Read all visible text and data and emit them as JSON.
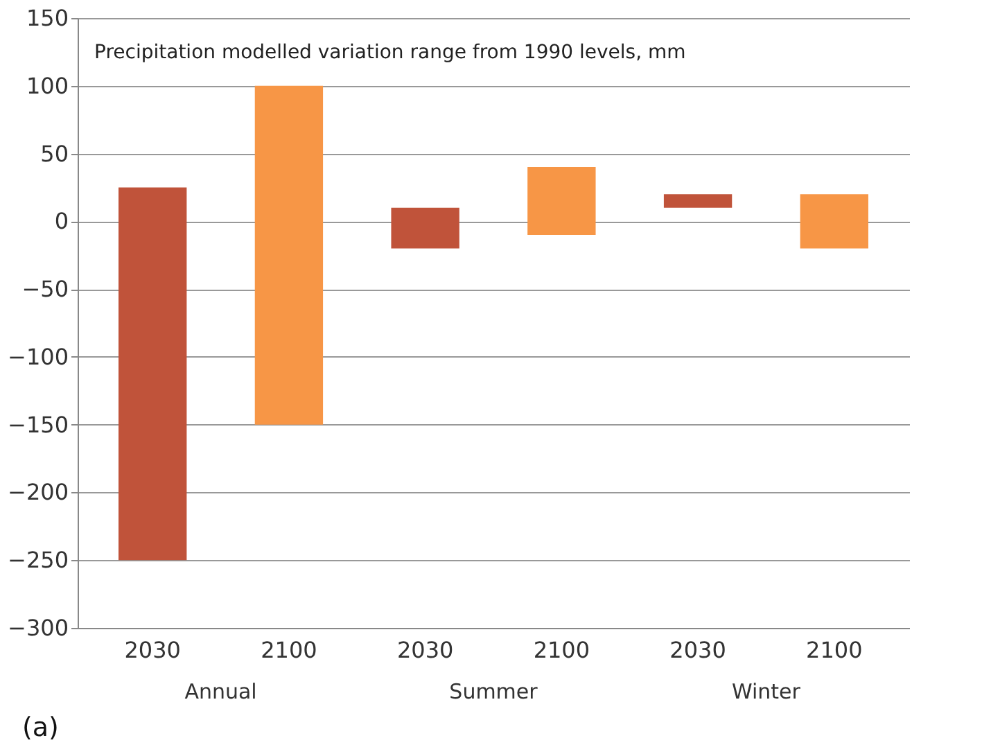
{
  "chart_data": {
    "type": "bar",
    "title": "Precipitation modelled variation range from 1990 levels, mm",
    "categories": [
      "2030",
      "2100",
      "2030",
      "2100",
      "2030",
      "2100"
    ],
    "base": [
      -250,
      -150,
      -20,
      -10,
      10,
      -20
    ],
    "values": [
      275,
      250,
      30,
      50,
      10,
      40
    ],
    "colors": [
      "#c0533a",
      "#f79646",
      "#c0533a",
      "#f79646",
      "#c0533a",
      "#f79646"
    ],
    "ylim": [
      -300,
      150
    ],
    "yticks": [
      -300,
      -250,
      -200,
      -150,
      -100,
      -50,
      0,
      50,
      100,
      150
    ],
    "grid": "y",
    "annotations": [
      "Annual",
      "Summer",
      "Winter",
      "(a)"
    ]
  }
}
